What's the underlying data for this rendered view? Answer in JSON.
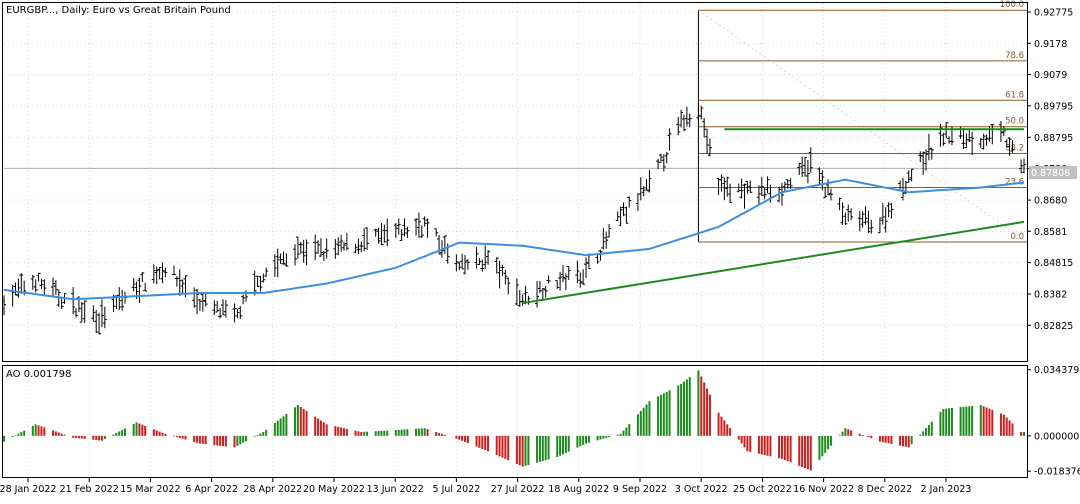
{
  "window": {
    "title": "EURGBP..., Daily:  Euro vs Great Britain Pound"
  },
  "indicator": {
    "title": "AO 0.001798"
  },
  "current_price_label": "0.87808",
  "colors": {
    "bars": "#000000",
    "ma_line": "#3d8fe0",
    "trend_line": "#1e8a1e",
    "fib": "#8b5a2b",
    "ao_up": "#1e8a1e",
    "ao_down": "#d11d1d",
    "grid": "#c8c8c8",
    "price_line": "#b0b0b0"
  },
  "chart_data": [
    {
      "type": "line",
      "subtype": "ohlc-bars-with-moving-average",
      "symbol": "EURGBP",
      "timeframe": "Daily",
      "x_labels": [
        "28 Jan 2022",
        "21 Feb 2022",
        "15 Mar 2022",
        "6 Apr 2022",
        "28 Apr 2022",
        "20 May 2022",
        "13 Jun 2022",
        "5 Jul 2022",
        "27 Jul 2022",
        "18 Aug 2022",
        "9 Sep 2022",
        "3 Oct 2022",
        "25 Oct 2022",
        "16 Nov 2022",
        "8 Dec 2022",
        "2 Jan 2023"
      ],
      "y_ticks": [
        0.92775,
        0.9178,
        0.9079,
        0.89795,
        0.88795,
        0.878,
        0.868,
        0.8581,
        0.84815,
        0.8382,
        0.82825
      ],
      "ylim": [
        0.8169,
        0.9306
      ],
      "price_series": {
        "name": "",
        "x": [
          "2022-01-28",
          "2022-02-08",
          "2022-02-21",
          "2022-03-03",
          "2022-03-15",
          "2022-03-25",
          "2022-04-06",
          "2022-04-18",
          "2022-04-28",
          "2022-05-10",
          "2022-05-20",
          "2022-06-01",
          "2022-06-13",
          "2022-06-23",
          "2022-07-05",
          "2022-07-15",
          "2022-07-27",
          "2022-08-08",
          "2022-08-18",
          "2022-08-30",
          "2022-09-09",
          "2022-09-20",
          "2022-09-26",
          "2022-10-03",
          "2022-10-13",
          "2022-10-25",
          "2022-11-04",
          "2022-11-16",
          "2022-11-28",
          "2022-12-08",
          "2022-12-20",
          "2023-01-02",
          "2023-01-10",
          "2023-01-16"
        ],
        "values": [
          0.8365,
          0.8425,
          0.8345,
          0.8305,
          0.8405,
          0.8465,
          0.8355,
          0.8305,
          0.8445,
          0.8525,
          0.8515,
          0.8545,
          0.8575,
          0.8605,
          0.8465,
          0.8495,
          0.8365,
          0.8425,
          0.8455,
          0.8625,
          0.8725,
          0.8925,
          0.8985,
          0.8725,
          0.8705,
          0.8715,
          0.8795,
          0.8625,
          0.8605,
          0.8755,
          0.8885,
          0.8875,
          0.8885,
          0.8781
        ]
      },
      "moving_average": {
        "name": "",
        "x": [
          "2022-01-28",
          "2022-02-21",
          "2022-03-15",
          "2022-04-06",
          "2022-04-28",
          "2022-05-20",
          "2022-06-13",
          "2022-07-05",
          "2022-07-27",
          "2022-08-18",
          "2022-09-09",
          "2022-10-03",
          "2022-10-25",
          "2022-11-16",
          "2022-12-08",
          "2023-01-02",
          "2023-01-16"
        ],
        "values": [
          0.8395,
          0.8365,
          0.8375,
          0.8385,
          0.8385,
          0.8415,
          0.8465,
          0.8545,
          0.8535,
          0.8505,
          0.8525,
          0.8595,
          0.8705,
          0.8745,
          0.8705,
          0.872,
          0.8735
        ]
      },
      "trend_lines": [
        {
          "from": [
            "2022-07-27",
            0.8353
          ],
          "to": [
            "2023-01-17",
            0.8611
          ]
        },
        {
          "from": [
            "2022-10-05",
            0.8905
          ],
          "to": [
            "2023-01-17",
            0.8905
          ]
        }
      ],
      "fibonacci": {
        "high": 0.9283,
        "low": 0.8547,
        "start_date": "2022-09-26",
        "levels": [
          {
            "label": "100.0",
            "value": 0.9283
          },
          {
            "label": "78.6",
            "value": 0.9122
          },
          {
            "label": "61.8",
            "value": 0.8997
          },
          {
            "label": "50.0",
            "value": 0.8913
          },
          {
            "label": "38.2",
            "value": 0.8828
          },
          {
            "label": "23.6",
            "value": 0.872
          },
          {
            "label": "0.0",
            "value": 0.8547
          }
        ]
      },
      "current_price": 0.87808
    },
    {
      "type": "bar",
      "name": "AO",
      "y_ticks": [
        0.034379,
        0.0,
        -0.018376
      ],
      "ylim": [
        -0.0214,
        0.0363
      ],
      "x": [
        "2022-01-28",
        "2022-02-08",
        "2022-02-21",
        "2022-03-03",
        "2022-03-15",
        "2022-03-25",
        "2022-04-06",
        "2022-04-18",
        "2022-04-28",
        "2022-05-10",
        "2022-05-20",
        "2022-06-01",
        "2022-06-13",
        "2022-06-23",
        "2022-07-05",
        "2022-07-15",
        "2022-07-27",
        "2022-08-08",
        "2022-08-18",
        "2022-08-30",
        "2022-09-09",
        "2022-09-20",
        "2022-09-26",
        "2022-10-03",
        "2022-10-13",
        "2022-10-25",
        "2022-11-04",
        "2022-11-16",
        "2022-11-28",
        "2022-12-08",
        "2022-12-20",
        "2023-01-02",
        "2023-01-10",
        "2023-01-16"
      ],
      "values": [
        -0.003,
        0.006,
        -0.001,
        -0.0025,
        0.007,
        0.001,
        -0.004,
        -0.006,
        0.002,
        0.016,
        0.006,
        0.002,
        0.003,
        0.004,
        -0.002,
        -0.008,
        -0.016,
        -0.011,
        -0.004,
        0.001,
        0.018,
        0.027,
        0.034,
        0.012,
        -0.008,
        -0.012,
        -0.018,
        0.004,
        -0.003,
        -0.006,
        0.014,
        0.016,
        0.011,
        0.002
      ]
    }
  ]
}
